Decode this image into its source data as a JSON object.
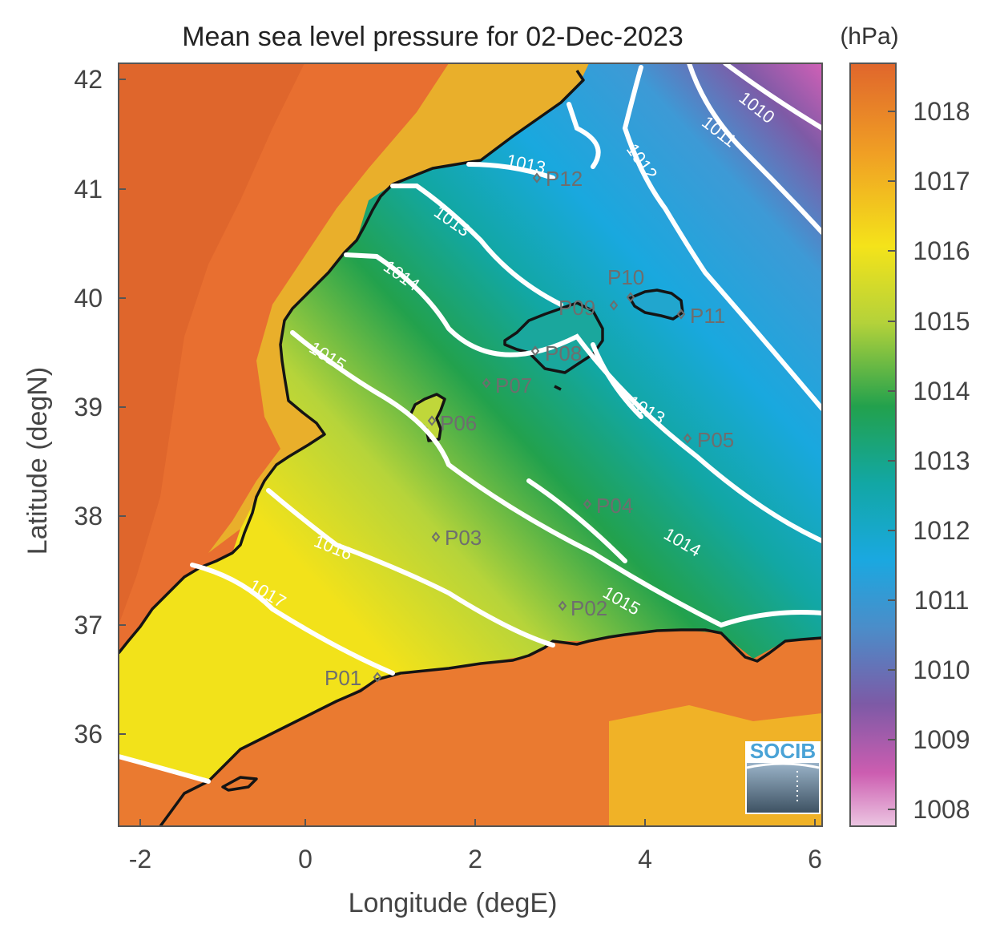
{
  "title": "Mean sea level pressure for 02-Dec-2023",
  "xlabel": "Longitude (degE)",
  "ylabel": "Latitude (degN)",
  "colorbar_unit": "(hPa)",
  "x_ticks": [
    "-2",
    "0",
    "2",
    "4",
    "6"
  ],
  "y_ticks": [
    "42",
    "41",
    "40",
    "39",
    "38",
    "37",
    "36"
  ],
  "colorbar_ticks": [
    "1018",
    "1017",
    "1016",
    "1015",
    "1014",
    "1013",
    "1012",
    "1011",
    "1010",
    "1009",
    "1008"
  ],
  "colors": {
    "high": "#e06a2e",
    "yellow": "#f2e21a",
    "green": "#2aa64a",
    "teal": "#12a6a6",
    "blue": "#19a6dc",
    "purple": "#7f5aa6",
    "pink": "#e6b6da",
    "contour": "#ffffff",
    "coast": "#141414"
  },
  "contours": [
    {
      "label": "1010"
    },
    {
      "label": "1011"
    },
    {
      "label": "1012"
    },
    {
      "label": "1013"
    },
    {
      "label": "1013"
    },
    {
      "label": "1013"
    },
    {
      "label": "1014"
    },
    {
      "label": "1014"
    },
    {
      "label": "1015"
    },
    {
      "label": "1015"
    },
    {
      "label": "1016"
    },
    {
      "label": "1017"
    }
  ],
  "stations": [
    {
      "label": "P01"
    },
    {
      "label": "P02"
    },
    {
      "label": "P03"
    },
    {
      "label": "P04"
    },
    {
      "label": "P05"
    },
    {
      "label": "P06"
    },
    {
      "label": "P07"
    },
    {
      "label": "P08"
    },
    {
      "label": "P09"
    },
    {
      "label": "P10"
    },
    {
      "label": "P11"
    },
    {
      "label": "P12"
    }
  ],
  "logo": "SOCIB"
}
